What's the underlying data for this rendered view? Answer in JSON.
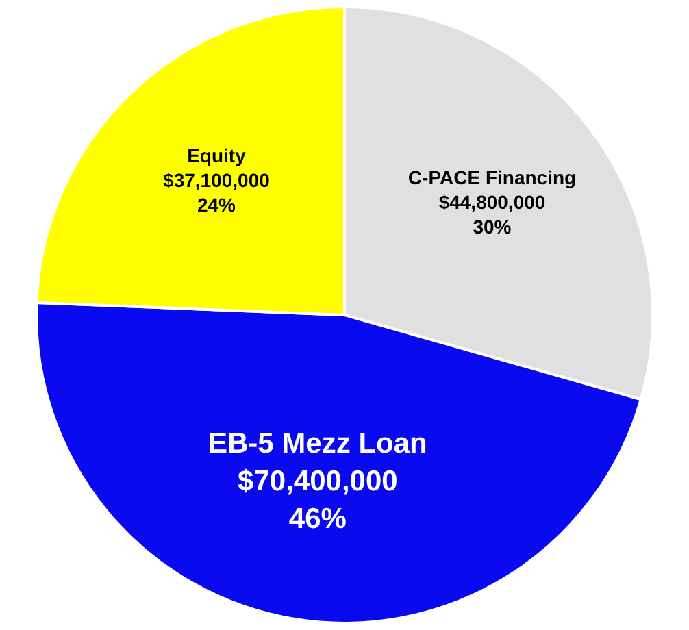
{
  "chart_data": {
    "type": "pie",
    "categories": [
      "C-PACE Financing",
      "EB-5 Mezz Loan",
      "Equity"
    ],
    "values": [
      44800000,
      70400000,
      37100000
    ],
    "colors": [
      "#e0e0e0",
      "#0a0af0",
      "#ffff00"
    ],
    "value_labels": [
      "$44,800,000\n30%",
      "$70,400,000\n46%",
      "$37,100,000\n24%"
    ],
    "legend": false
  }
}
